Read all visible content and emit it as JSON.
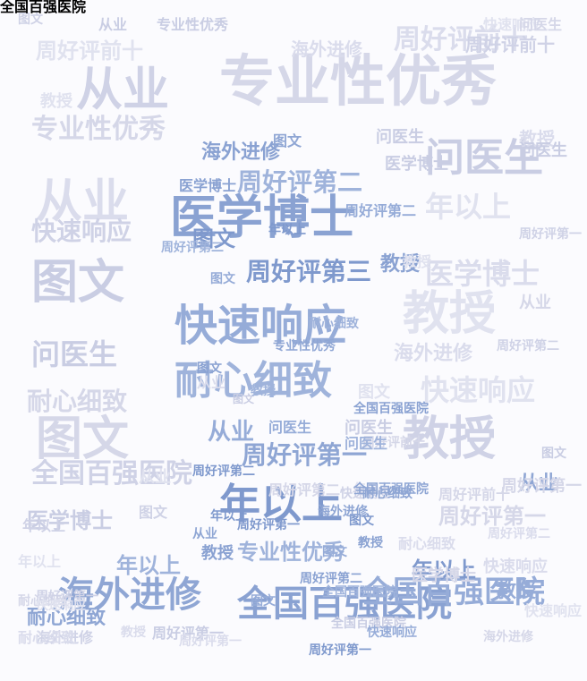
{
  "words": [
    {
      "text": "专业性优秀",
      "tone": "muted",
      "big": true
    },
    {
      "text": "从业",
      "tone": "muted",
      "big": true
    },
    {
      "text": "从业",
      "tone": "muted",
      "big": true
    },
    {
      "text": "图文",
      "tone": "muted",
      "big": true
    },
    {
      "text": "教授",
      "tone": "muted",
      "big": true
    },
    {
      "text": "图文",
      "tone": "muted",
      "big": true
    },
    {
      "text": "教授",
      "tone": "muted",
      "big": true
    },
    {
      "text": "周好评前十",
      "tone": "muted"
    },
    {
      "text": "问医生",
      "tone": "muted"
    },
    {
      "text": "年以上",
      "tone": "muted"
    },
    {
      "text": "专业性优秀",
      "tone": "muted"
    },
    {
      "text": "快速响应",
      "tone": "muted"
    },
    {
      "text": "医学博士",
      "tone": "muted"
    },
    {
      "text": "问医生",
      "tone": "muted"
    },
    {
      "text": "快速响应",
      "tone": "muted"
    },
    {
      "text": "耐心细致",
      "tone": "muted"
    },
    {
      "text": "全国百强医院",
      "tone": "muted"
    },
    {
      "text": "海外进修",
      "tone": "muted"
    },
    {
      "text": "医学博士",
      "tone": "muted"
    },
    {
      "text": "周好评前十",
      "tone": "muted"
    },
    {
      "text": "周好评第一",
      "tone": "muted"
    },
    {
      "text": "医学博士",
      "tone": "accent",
      "big": true
    },
    {
      "text": "快速响应",
      "tone": "accent",
      "big": true
    },
    {
      "text": "耐心细致",
      "tone": "accent",
      "big": true
    },
    {
      "text": "年以上",
      "tone": "accent",
      "big": true
    },
    {
      "text": "海外进修",
      "tone": "accent",
      "big": true
    },
    {
      "text": "全国百强医院",
      "tone": "accent",
      "big": true
    },
    {
      "text": "全国百强医院",
      "tone": "accent",
      "big": true
    },
    {
      "text": "周好评第二",
      "tone": "accent"
    },
    {
      "text": "周好评第三",
      "tone": "accent"
    },
    {
      "text": "周好评第一",
      "tone": "accent"
    },
    {
      "text": "海外进修",
      "tone": "accent"
    },
    {
      "text": "从业",
      "tone": "accent"
    },
    {
      "text": "专业性优秀",
      "tone": "accent"
    },
    {
      "text": "图文",
      "tone": "accent"
    },
    {
      "text": "从业",
      "tone": "accent"
    },
    {
      "text": "教授",
      "tone": "accent"
    },
    {
      "text": "教授",
      "tone": "accent"
    },
    {
      "text": "年以上",
      "tone": "accent"
    },
    {
      "text": "年以上",
      "tone": "accent"
    },
    {
      "text": "耐心细致",
      "tone": "accent"
    },
    {
      "text": "教授",
      "tone": "accent"
    },
    {
      "text": "周好评第二",
      "tone": "accent"
    },
    {
      "text": "从业",
      "tone": "muted"
    },
    {
      "text": "从业",
      "tone": "muted"
    },
    {
      "text": "周好评第二",
      "tone": "muted"
    },
    {
      "text": "周好评前十",
      "tone": "muted"
    },
    {
      "text": "海外进修",
      "tone": "muted"
    },
    {
      "text": "专业性优秀",
      "tone": "muted"
    },
    {
      "text": "快速响应",
      "tone": "muted"
    },
    {
      "text": "问医生",
      "tone": "muted"
    },
    {
      "text": "图文",
      "tone": "muted"
    },
    {
      "text": "教授",
      "tone": "muted"
    },
    {
      "text": "问医生",
      "tone": "muted"
    },
    {
      "text": "教授",
      "tone": "muted"
    },
    {
      "text": "医学博士",
      "tone": "muted"
    },
    {
      "text": "年以上",
      "tone": "muted"
    },
    {
      "text": "从业",
      "tone": "muted"
    },
    {
      "text": "医学博士",
      "tone": "muted"
    },
    {
      "text": "年以上",
      "tone": "muted"
    },
    {
      "text": "周好评第一",
      "tone": "muted"
    },
    {
      "text": "海外进修",
      "tone": "muted"
    },
    {
      "text": "快速响应",
      "tone": "muted"
    },
    {
      "text": "问医生",
      "tone": "muted"
    },
    {
      "text": "教授",
      "tone": "muted"
    },
    {
      "text": "从业",
      "tone": "muted"
    },
    {
      "text": "图文",
      "tone": "muted"
    },
    {
      "text": "耐心细致",
      "tone": "muted"
    },
    {
      "text": "问医生",
      "tone": "muted"
    },
    {
      "text": "图文",
      "tone": "muted"
    },
    {
      "text": "周好评前十",
      "tone": "muted"
    },
    {
      "text": "周好评第一",
      "tone": "muted"
    },
    {
      "text": "耐心细致",
      "tone": "muted"
    },
    {
      "text": "周好评第一",
      "tone": "muted"
    },
    {
      "text": "年以上",
      "tone": "muted"
    },
    {
      "text": "耐心细致",
      "tone": "muted"
    },
    {
      "text": "快速响应",
      "tone": "muted"
    },
    {
      "text": "周好评第二",
      "tone": "muted"
    },
    {
      "text": "图文",
      "tone": "muted"
    },
    {
      "text": "快速响应",
      "tone": "muted"
    },
    {
      "text": "周好评前十",
      "tone": "muted"
    },
    {
      "text": "周好评第一",
      "tone": "muted"
    },
    {
      "text": "周好评第一",
      "tone": "muted"
    },
    {
      "text": "全国百强医院",
      "tone": "muted"
    },
    {
      "text": "快速响应",
      "tone": "muted"
    },
    {
      "text": "海外进修",
      "tone": "muted"
    },
    {
      "text": "周好评第二",
      "tone": "muted"
    },
    {
      "text": "教授",
      "tone": "muted"
    },
    {
      "text": "图文",
      "tone": "muted"
    },
    {
      "text": "周好评第二",
      "tone": "accent"
    },
    {
      "text": "图文",
      "tone": "accent"
    },
    {
      "text": "医学博士",
      "tone": "accent"
    },
    {
      "text": "问医生",
      "tone": "accent"
    },
    {
      "text": "问医生",
      "tone": "accent"
    },
    {
      "text": "图文",
      "tone": "accent"
    },
    {
      "text": "从业",
      "tone": "accent"
    },
    {
      "text": "图文",
      "tone": "accent"
    },
    {
      "text": "图文",
      "tone": "accent"
    },
    {
      "text": "教授",
      "tone": "accent"
    },
    {
      "text": "年以上",
      "tone": "accent"
    },
    {
      "text": "全国百强医院",
      "tone": "accent"
    },
    {
      "text": "周好评第二",
      "tone": "accent"
    },
    {
      "text": "图文",
      "tone": "accent"
    },
    {
      "text": "周好评第二",
      "tone": "accent"
    },
    {
      "text": "年以上",
      "tone": "accent"
    },
    {
      "text": "海外进修",
      "tone": "accent"
    },
    {
      "text": "教授",
      "tone": "accent"
    },
    {
      "text": "快速响应",
      "tone": "accent"
    },
    {
      "text": "全国百强医院",
      "tone": "accent"
    },
    {
      "text": "周好评第一",
      "tone": "accent"
    },
    {
      "text": "耐心细致",
      "tone": "accent"
    },
    {
      "text": "全国百强医院",
      "tone": "accent"
    },
    {
      "text": "图文",
      "tone": "accent"
    },
    {
      "text": "耐心细致",
      "tone": "accent"
    },
    {
      "text": "周好评第一",
      "tone": "accent"
    },
    {
      "text": "专业性优秀",
      "tone": "accent"
    },
    {
      "text": "全国百强医院",
      "tone": "accent"
    }
  ],
  "colors": {
    "background": "#fbfbfe",
    "muted": [
      "#d5d7e8",
      "#cfd2e6",
      "#dadcec",
      "#c9cde3",
      "#e0e2ef"
    ],
    "accent": [
      "#8fa6d4",
      "#8aa2d2",
      "#96acd8",
      "#9fb3db",
      "#7f99cd"
    ]
  }
}
